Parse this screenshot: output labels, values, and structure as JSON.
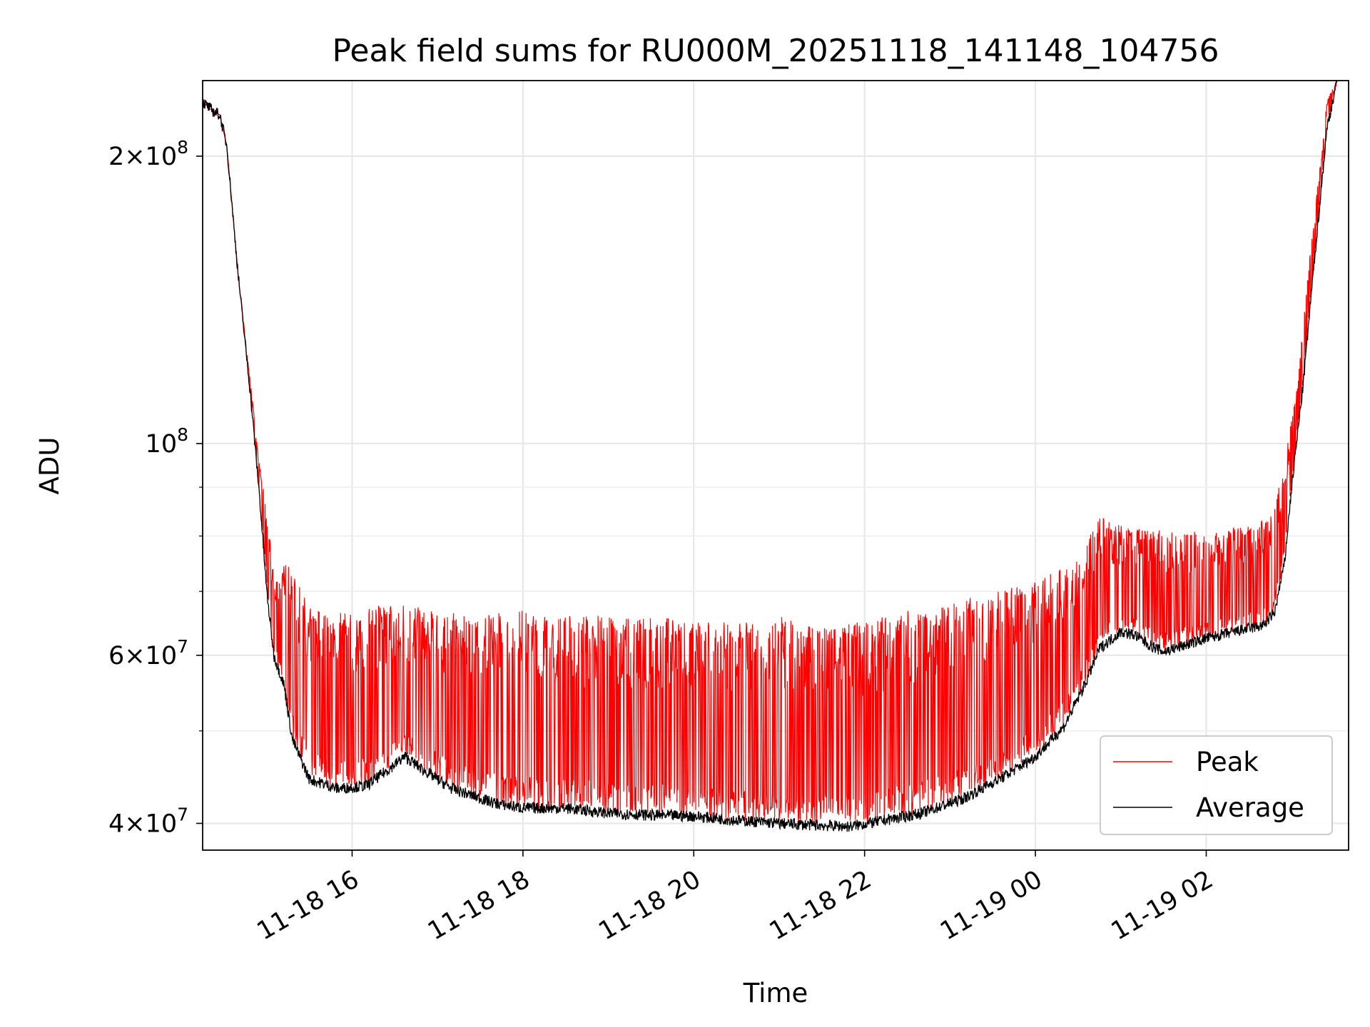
{
  "chart_data": {
    "type": "line",
    "title": "Peak field sums for RU000M_20251118_141148_104756",
    "xlabel": "Time",
    "ylabel": "ADU",
    "yscale": "log",
    "ylim": [
      37500000,
      240000000
    ],
    "xlim": [
      "2025-11-18 14:15",
      "2025-11-19 03:40"
    ],
    "grid": true,
    "legend": {
      "location": "lower-right",
      "entries": [
        "Peak",
        "Average"
      ]
    },
    "x_ticks": [
      {
        "value": "2025-11-18 16:00",
        "label": "11-18 16"
      },
      {
        "value": "2025-11-18 18:00",
        "label": "11-18 18"
      },
      {
        "value": "2025-11-18 20:00",
        "label": "11-18 20"
      },
      {
        "value": "2025-11-18 22:00",
        "label": "11-18 22"
      },
      {
        "value": "2025-11-19 00:00",
        "label": "11-19 00"
      },
      {
        "value": "2025-11-19 02:00",
        "label": "11-19 02"
      }
    ],
    "y_ticks": [
      {
        "value": 40000000,
        "mantissa": "4",
        "exponent": "7"
      },
      {
        "value": 60000000,
        "mantissa": "6",
        "exponent": "7"
      },
      {
        "value": 100000000,
        "mantissa": "",
        "exponent": "8"
      },
      {
        "value": 200000000,
        "mantissa": "2",
        "exponent": "8"
      }
    ],
    "y_minor_ticks": [
      50000000,
      70000000,
      80000000,
      90000000
    ],
    "series": [
      {
        "name": "Peak",
        "color": "#ff0000",
        "points": [
          [
            "2025-11-18 14:15",
            228000000
          ],
          [
            "2025-11-18 14:22",
            223000000
          ],
          [
            "2025-11-18 14:27",
            221000000
          ],
          [
            "2025-11-18 14:32",
            205000000
          ],
          [
            "2025-11-18 14:40",
            150000000
          ],
          [
            "2025-11-18 14:48",
            118000000
          ],
          [
            "2025-11-18 14:55",
            95000000
          ],
          [
            "2025-11-18 15:00",
            85000000
          ],
          [
            "2025-11-18 15:05",
            73000000
          ],
          [
            "2025-11-18 15:15",
            75000000
          ],
          [
            "2025-11-18 15:25",
            70000000
          ],
          [
            "2025-11-18 15:40",
            66000000
          ],
          [
            "2025-11-18 16:00",
            67000000
          ],
          [
            "2025-11-18 16:30",
            68000000
          ],
          [
            "2025-11-18 17:00",
            67000000
          ],
          [
            "2025-11-18 17:30",
            66000000
          ],
          [
            "2025-11-18 18:00",
            67000000
          ],
          [
            "2025-11-18 18:30",
            66000000
          ],
          [
            "2025-11-18 19:00",
            66000000
          ],
          [
            "2025-11-18 19:30",
            66000000
          ],
          [
            "2025-11-18 20:00",
            65000000
          ],
          [
            "2025-11-18 20:30",
            65000000
          ],
          [
            "2025-11-18 21:00",
            66000000
          ],
          [
            "2025-11-18 21:30",
            65000000
          ],
          [
            "2025-11-18 22:00",
            65000000
          ],
          [
            "2025-11-18 22:30",
            67000000
          ],
          [
            "2025-11-18 23:00",
            68000000
          ],
          [
            "2025-11-18 23:30",
            70000000
          ],
          [
            "2025-11-19 00:00",
            72000000
          ],
          [
            "2025-11-19 00:30",
            76000000
          ],
          [
            "2025-11-19 00:45",
            84000000
          ],
          [
            "2025-11-19 01:00",
            82000000
          ],
          [
            "2025-11-19 01:30",
            81000000
          ],
          [
            "2025-11-19 02:00",
            81000000
          ],
          [
            "2025-11-19 02:30",
            82000000
          ],
          [
            "2025-11-19 02:45",
            84000000
          ],
          [
            "2025-11-19 02:55",
            95000000
          ],
          [
            "2025-11-19 03:05",
            120000000
          ],
          [
            "2025-11-19 03:15",
            170000000
          ],
          [
            "2025-11-19 03:25",
            230000000
          ],
          [
            "2025-11-19 03:32",
            240000000
          ]
        ]
      },
      {
        "name": "Average",
        "color": "#000000",
        "points": [
          [
            "2025-11-18 14:15",
            228000000
          ],
          [
            "2025-11-18 14:22",
            223000000
          ],
          [
            "2025-11-18 14:27",
            221000000
          ],
          [
            "2025-11-18 14:32",
            205000000
          ],
          [
            "2025-11-18 14:40",
            150000000
          ],
          [
            "2025-11-18 14:48",
            115000000
          ],
          [
            "2025-11-18 14:55",
            88000000
          ],
          [
            "2025-11-18 15:00",
            70000000
          ],
          [
            "2025-11-18 15:05",
            60000000
          ],
          [
            "2025-11-18 15:12",
            56000000
          ],
          [
            "2025-11-18 15:18",
            49000000
          ],
          [
            "2025-11-18 15:30",
            44500000
          ],
          [
            "2025-11-18 15:50",
            43500000
          ],
          [
            "2025-11-18 16:10",
            43800000
          ],
          [
            "2025-11-18 16:25",
            45500000
          ],
          [
            "2025-11-18 16:37",
            47000000
          ],
          [
            "2025-11-18 16:50",
            45500000
          ],
          [
            "2025-11-18 17:10",
            43500000
          ],
          [
            "2025-11-18 17:40",
            42000000
          ],
          [
            "2025-11-18 18:00",
            41500000
          ],
          [
            "2025-11-18 18:30",
            41500000
          ],
          [
            "2025-11-18 19:00",
            41000000
          ],
          [
            "2025-11-18 19:30",
            40800000
          ],
          [
            "2025-11-18 20:00",
            40700000
          ],
          [
            "2025-11-18 20:30",
            40300000
          ],
          [
            "2025-11-18 21:00",
            40000000
          ],
          [
            "2025-11-18 21:30",
            39800000
          ],
          [
            "2025-11-18 21:50",
            39700000
          ],
          [
            "2025-11-18 22:10",
            40200000
          ],
          [
            "2025-11-18 22:40",
            41000000
          ],
          [
            "2025-11-18 23:10",
            42500000
          ],
          [
            "2025-11-18 23:40",
            45000000
          ],
          [
            "2025-11-19 00:00",
            47000000
          ],
          [
            "2025-11-19 00:20",
            50500000
          ],
          [
            "2025-11-19 00:35",
            56000000
          ],
          [
            "2025-11-19 00:45",
            61000000
          ],
          [
            "2025-11-19 01:00",
            63500000
          ],
          [
            "2025-11-19 01:10",
            63000000
          ],
          [
            "2025-11-19 01:20",
            61500000
          ],
          [
            "2025-11-19 01:30",
            60500000
          ],
          [
            "2025-11-19 01:45",
            61500000
          ],
          [
            "2025-11-19 02:00",
            62500000
          ],
          [
            "2025-11-19 02:20",
            63500000
          ],
          [
            "2025-11-19 02:40",
            64500000
          ],
          [
            "2025-11-19 02:48",
            66500000
          ],
          [
            "2025-11-19 02:55",
            75000000
          ],
          [
            "2025-11-19 03:00",
            90000000
          ],
          [
            "2025-11-19 03:08",
            115000000
          ],
          [
            "2025-11-19 03:15",
            150000000
          ],
          [
            "2025-11-19 03:25",
            215000000
          ],
          [
            "2025-11-19 03:32",
            240000000
          ]
        ]
      }
    ]
  }
}
